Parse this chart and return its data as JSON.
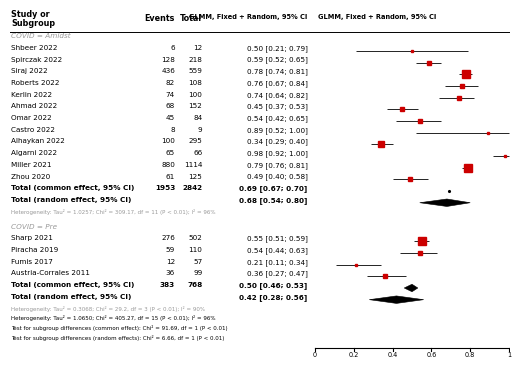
{
  "subgroup1_label": "COVID = Amidst",
  "subgroup1_studies": [
    {
      "name": "Shbeer 2022",
      "events": 6,
      "total": 12,
      "est": 0.5,
      "ci_lo": 0.21,
      "ci_hi": 0.79
    },
    {
      "name": "Spirczak 2022",
      "events": 128,
      "total": 218,
      "est": 0.59,
      "ci_lo": 0.52,
      "ci_hi": 0.65
    },
    {
      "name": "Siraj 2022",
      "events": 436,
      "total": 559,
      "est": 0.78,
      "ci_lo": 0.74,
      "ci_hi": 0.81
    },
    {
      "name": "Roberts 2022",
      "events": 82,
      "total": 108,
      "est": 0.76,
      "ci_lo": 0.67,
      "ci_hi": 0.84
    },
    {
      "name": "Kerlin 2022",
      "events": 74,
      "total": 100,
      "est": 0.74,
      "ci_lo": 0.64,
      "ci_hi": 0.82
    },
    {
      "name": "Ahmad 2022",
      "events": 68,
      "total": 152,
      "est": 0.45,
      "ci_lo": 0.37,
      "ci_hi": 0.53
    },
    {
      "name": "Omar 2022",
      "events": 45,
      "total": 84,
      "est": 0.54,
      "ci_lo": 0.42,
      "ci_hi": 0.65
    },
    {
      "name": "Castro 2022",
      "events": 8,
      "total": 9,
      "est": 0.89,
      "ci_lo": 0.52,
      "ci_hi": 1.0
    },
    {
      "name": "Alhaykan 2022",
      "events": 100,
      "total": 295,
      "est": 0.34,
      "ci_lo": 0.29,
      "ci_hi": 0.4
    },
    {
      "name": "Algarni 2022",
      "events": 65,
      "total": 66,
      "est": 0.98,
      "ci_lo": 0.92,
      "ci_hi": 1.0
    },
    {
      "name": "Miller 2021",
      "events": 880,
      "total": 1114,
      "est": 0.79,
      "ci_lo": 0.76,
      "ci_hi": 0.81
    },
    {
      "name": "Zhou 2020",
      "events": 61,
      "total": 125,
      "est": 0.49,
      "ci_lo": 0.4,
      "ci_hi": 0.58
    }
  ],
  "subgroup1_total_common": {
    "events": 1953,
    "total": 2842,
    "est": 0.69,
    "ci_lo": 0.67,
    "ci_hi": 0.7
  },
  "subgroup1_total_random": {
    "est": 0.68,
    "ci_lo": 0.54,
    "ci_hi": 0.8
  },
  "subgroup1_het": "Heterogeneity: Tau² = 1.0257; Chi² = 309.17, df = 11 (P < 0.01); I² = 96%",
  "subgroup2_label": "COVID = Pre",
  "subgroup2_studies": [
    {
      "name": "Sharp 2021",
      "events": 276,
      "total": 502,
      "est": 0.55,
      "ci_lo": 0.51,
      "ci_hi": 0.59
    },
    {
      "name": "Piracha 2019",
      "events": 59,
      "total": 110,
      "est": 0.54,
      "ci_lo": 0.44,
      "ci_hi": 0.63
    },
    {
      "name": "Fumis 2017",
      "events": 12,
      "total": 57,
      "est": 0.21,
      "ci_lo": 0.11,
      "ci_hi": 0.34
    },
    {
      "name": "Austria-Corrales 2011",
      "events": 36,
      "total": 99,
      "est": 0.36,
      "ci_lo": 0.27,
      "ci_hi": 0.47
    }
  ],
  "subgroup2_total_common": {
    "events": 383,
    "total": 768,
    "est": 0.5,
    "ci_lo": 0.46,
    "ci_hi": 0.53
  },
  "subgroup2_total_random": {
    "est": 0.42,
    "ci_lo": 0.28,
    "ci_hi": 0.56
  },
  "subgroup2_het": "Heterogeneity: Tau² = 0.3068; Chi² = 29.2, df = 3 (P < 0.01); I² = 90%",
  "overall_het": "Heterogeneity: Tau² = 1.0650; Chi² = 405.27, df = 15 (P < 0.01); I² = 96%",
  "subgroup_common_test": "Test for subgroup differences (common effect): Chi² = 91.69, df = 1 (P < 0.01)",
  "subgroup_random_test": "Test for subgroup differences (random effects): Chi² = 6.66, df = 1 (P < 0.01)",
  "axis_ticks": [
    0,
    0.2,
    0.4,
    0.6,
    0.8,
    1
  ],
  "marker_color": "#CC0000",
  "text_color": "#000000",
  "gray_color": "#999999",
  "background_color": "#ffffff"
}
